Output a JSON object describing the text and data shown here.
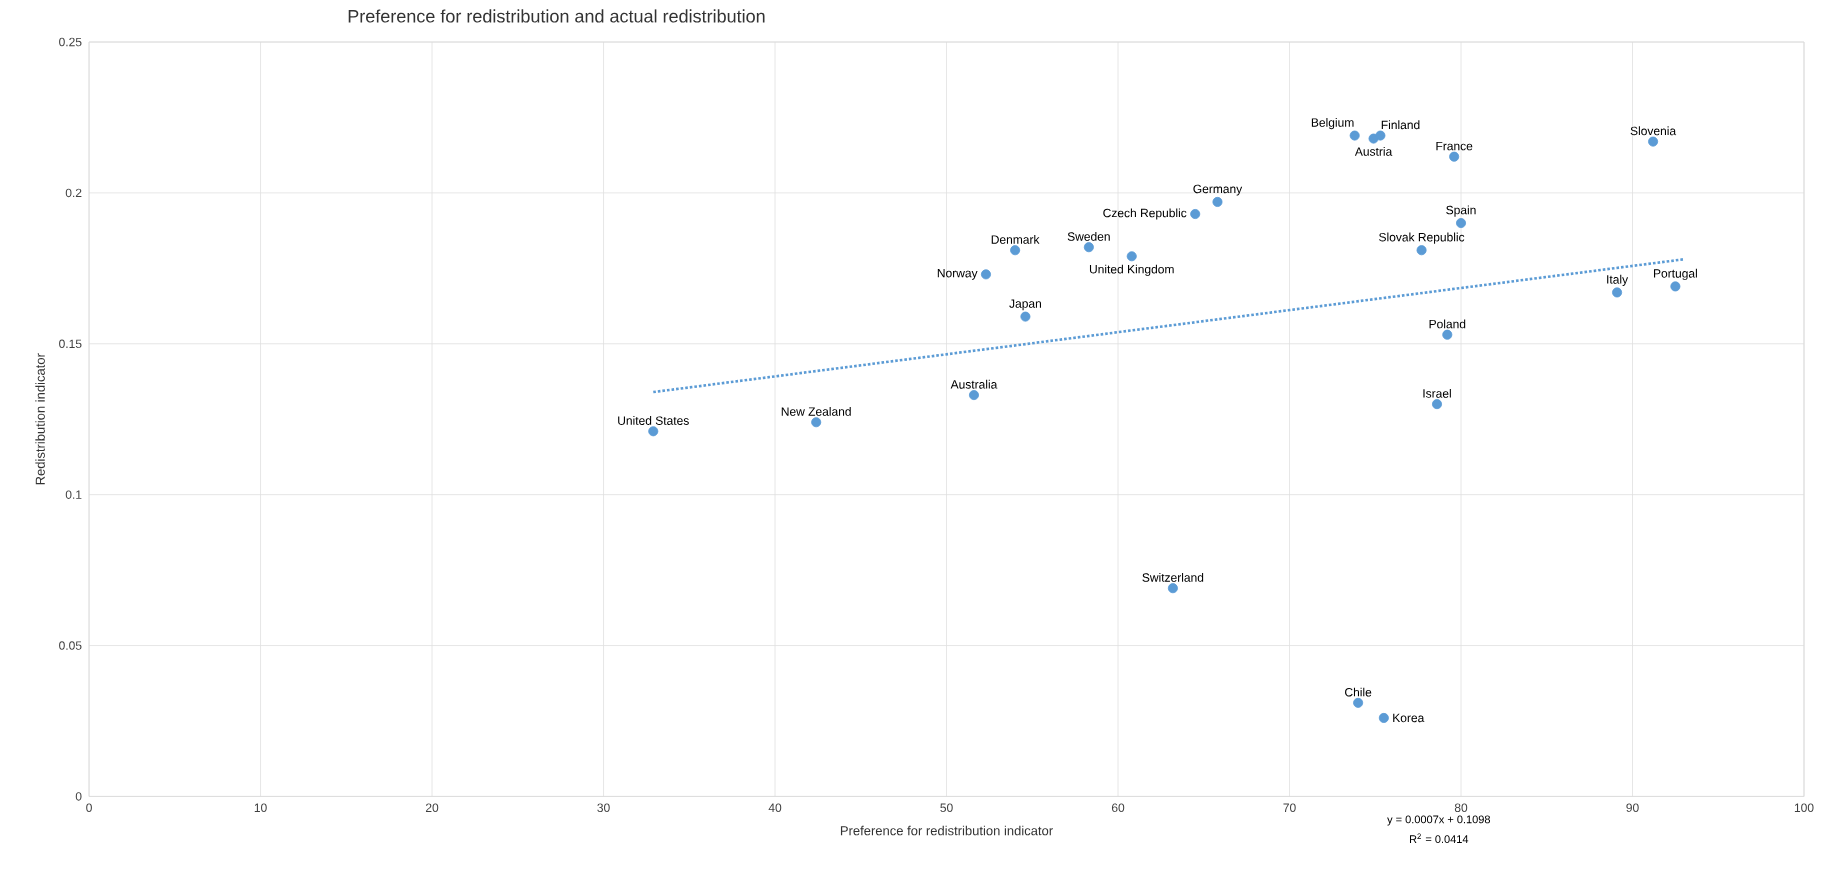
{
  "chart_data": {
    "type": "scatter",
    "title": "Preference for redistribution and actual redistribution",
    "xlabel": "Preference for redistribution indicator",
    "ylabel": "Redistribution indicator",
    "xlim": [
      0,
      100
    ],
    "ylim": [
      0,
      0.25
    ],
    "xticks": [
      0,
      10,
      20,
      30,
      40,
      50,
      60,
      70,
      80,
      90,
      100
    ],
    "yticks": [
      0,
      0.05,
      0.1,
      0.15,
      0.2,
      0.25
    ],
    "grid": true,
    "marker": "circle",
    "series": [
      {
        "color": "#5b9bd5",
        "x": [
          32.9,
          42.4,
          51.6,
          54.6,
          52.3,
          54.0,
          58.3,
          60.8,
          64.5,
          65.8,
          63.2,
          73.8,
          74.9,
          75.3,
          79.6,
          91.2,
          80.0,
          77.7,
          89.1,
          92.5,
          79.2,
          78.6,
          74.0,
          75.5
        ],
        "values": [
          0.121,
          0.124,
          0.133,
          0.159,
          0.173,
          0.181,
          0.182,
          0.179,
          0.193,
          0.197,
          0.069,
          0.219,
          0.218,
          0.219,
          0.212,
          0.217,
          0.19,
          0.181,
          0.167,
          0.169,
          0.153,
          0.13,
          0.031,
          0.026
        ]
      },
      {
        "type": "line",
        "color": "#5b9bd5",
        "line_style": "dotted",
        "marker": "none",
        "x": [
          32.9,
          93.0
        ],
        "values": [
          0.134,
          0.178
        ]
      }
    ],
    "annotations": [
      {
        "text": "United States",
        "x": 32.9,
        "y": 0.121
      },
      {
        "text": "New Zealand",
        "x": 42.4,
        "y": 0.124
      },
      {
        "text": "Australia",
        "x": 51.6,
        "y": 0.133
      },
      {
        "text": "Japan",
        "x": 54.6,
        "y": 0.159
      },
      {
        "text": "Norway",
        "x": 52.3,
        "y": 0.173
      },
      {
        "text": "Denmark",
        "x": 54.0,
        "y": 0.181
      },
      {
        "text": "Sweden",
        "x": 58.3,
        "y": 0.182
      },
      {
        "text": "United Kingdom",
        "x": 60.8,
        "y": 0.179
      },
      {
        "text": "Czech Republic",
        "x": 64.5,
        "y": 0.193
      },
      {
        "text": "Germany",
        "x": 65.8,
        "y": 0.197
      },
      {
        "text": "Switzerland",
        "x": 63.2,
        "y": 0.069
      },
      {
        "text": "Belgium",
        "x": 73.8,
        "y": 0.219
      },
      {
        "text": "Austria",
        "x": 74.9,
        "y": 0.218
      },
      {
        "text": "Finland",
        "x": 75.3,
        "y": 0.219
      },
      {
        "text": "France",
        "x": 79.6,
        "y": 0.212
      },
      {
        "text": "Slovenia",
        "x": 91.2,
        "y": 0.217
      },
      {
        "text": "Spain",
        "x": 80.0,
        "y": 0.19
      },
      {
        "text": "Slovak Republic",
        "x": 77.7,
        "y": 0.181
      },
      {
        "text": "Italy",
        "x": 89.1,
        "y": 0.167
      },
      {
        "text": "Portugal",
        "x": 92.5,
        "y": 0.169
      },
      {
        "text": "Poland",
        "x": 79.2,
        "y": 0.153
      },
      {
        "text": "Israel",
        "x": 78.6,
        "y": 0.13
      },
      {
        "text": "Chile",
        "x": 74.0,
        "y": 0.031
      },
      {
        "text": "Korea",
        "x": 75.5,
        "y": 0.026
      },
      "y = 0.0007x + 0.1098",
      "R$^{2}$ = 0.0414"
    ]
  }
}
